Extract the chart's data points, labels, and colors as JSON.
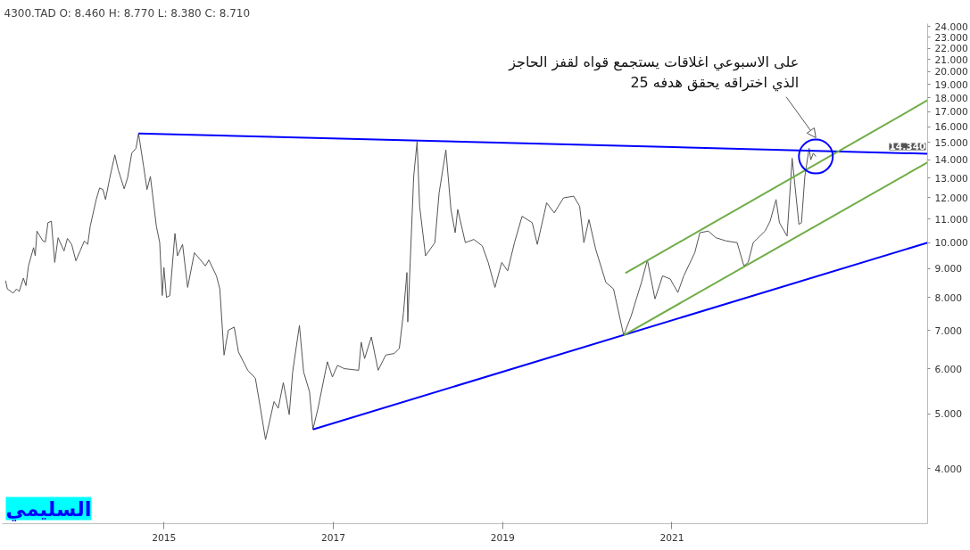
{
  "chart_data": {
    "type": "line",
    "title": "4300.TAD   O: 8.460  H: 8.770  L: 8.380  C: 8.710",
    "log": "y",
    "grid": false,
    "line_style": "solid",
    "marker": "none",
    "xlim": [
      2013.09,
      2024.02
    ],
    "xticks": [
      2015,
      2017,
      2019,
      2021
    ],
    "ylim": [
      3.2,
      24.3
    ],
    "yticks": [
      {
        "value": 4,
        "label": "4.000"
      },
      {
        "value": 5,
        "label": "5.000"
      },
      {
        "value": 6,
        "label": "6.000"
      },
      {
        "value": 7,
        "label": "7.000"
      },
      {
        "value": 8,
        "label": "8.000"
      },
      {
        "value": 9,
        "label": "9.000"
      },
      {
        "value": 10,
        "label": "10.000"
      },
      {
        "value": 11,
        "label": "11.000"
      },
      {
        "value": 12,
        "label": "12.000"
      },
      {
        "value": 13,
        "label": "13.000"
      },
      {
        "value": 14,
        "label": "14.000"
      },
      {
        "value": 15,
        "label": "15.000"
      },
      {
        "value": 16,
        "label": "16.000"
      },
      {
        "value": 17,
        "label": "17.000"
      },
      {
        "value": 18,
        "label": "18.000"
      },
      {
        "value": 19,
        "label": "19.000"
      },
      {
        "value": 20,
        "label": "20.000"
      },
      {
        "value": 21,
        "label": "21.000"
      },
      {
        "value": 22,
        "label": "22.000"
      },
      {
        "value": 23,
        "label": "23.000"
      },
      {
        "value": 24,
        "label": "24.000"
      }
    ],
    "series": [
      {
        "color": "#555555",
        "x": [
          2013.13,
          2013.15,
          2013.22,
          2013.26,
          2013.29,
          2013.34,
          2013.37,
          2013.4,
          2013.46,
          2013.48,
          2013.5,
          2013.57,
          2013.6,
          2013.63,
          2013.67,
          2013.71,
          2013.75,
          2013.82,
          2013.86,
          2013.91,
          2013.96,
          2014.01,
          2014.06,
          2014.1,
          2014.13,
          2014.2,
          2014.24,
          2014.28,
          2014.31,
          2014.36,
          2014.42,
          2014.46,
          2014.53,
          2014.57,
          2014.62,
          2014.67,
          2014.7,
          2014.76,
          2014.8,
          2014.84,
          2014.91,
          2014.95,
          2014.98,
          2015.0,
          2015.03,
          2015.07,
          2015.13,
          2015.16,
          2015.22,
          2015.28,
          2015.36,
          2015.49,
          2015.53,
          2015.62,
          2015.66,
          2015.71,
          2015.76,
          2015.83,
          2015.88,
          2015.99,
          2016.08,
          2016.14,
          2016.2,
          2016.3,
          2016.35,
          2016.41,
          2016.48,
          2016.52,
          2016.6,
          2016.65,
          2016.72,
          2016.76,
          2016.82,
          2016.93,
          2016.99,
          2017.05,
          2017.13,
          2017.3,
          2017.33,
          2017.37,
          2017.45,
          2017.53,
          2017.62,
          2017.72,
          2017.78,
          2017.83,
          2017.87,
          2017.88,
          2017.95,
          2017.99,
          2018.02,
          2018.09,
          2018.2,
          2018.25,
          2018.33,
          2018.39,
          2018.44,
          2018.47,
          2018.56,
          2018.66,
          2018.76,
          2018.83,
          2018.91,
          2018.99,
          2019.06,
          2019.14,
          2019.23,
          2019.35,
          2019.41,
          2019.52,
          2019.61,
          2019.72,
          2019.84,
          2019.91,
          2019.96,
          2020.02,
          2020.1,
          2020.22,
          2020.31,
          2020.43,
          2020.52,
          2020.58,
          2020.64,
          2020.71,
          2020.8,
          2020.89,
          2020.98,
          2021.07,
          2021.14,
          2021.27,
          2021.33,
          2021.43,
          2021.52,
          2021.64,
          2021.77,
          2021.85,
          2021.9,
          2021.96,
          2022.1,
          2022.16,
          2022.23,
          2022.27,
          2022.36,
          2022.42,
          2022.5,
          2022.53,
          2022.57,
          2022.62,
          2022.64,
          2022.67,
          2022.7
        ],
        "values": [
          8.57,
          8.29,
          8.15,
          8.29,
          8.2,
          8.66,
          8.4,
          9.1,
          9.8,
          9.48,
          10.48,
          10.07,
          10.03,
          10.84,
          10.91,
          9.23,
          10.2,
          9.67,
          10.17,
          9.93,
          9.29,
          9.67,
          10.07,
          9.93,
          10.7,
          11.91,
          12.48,
          12.4,
          11.91,
          12.99,
          14.27,
          13.44,
          12.44,
          12.99,
          14.37,
          14.66,
          15.57,
          13.62,
          12.4,
          13.08,
          10.7,
          10.0,
          8.07,
          9.04,
          8.01,
          8.07,
          10.38,
          9.48,
          9.93,
          8.34,
          9.6,
          9.1,
          9.32,
          8.74,
          8.29,
          6.34,
          7.01,
          7.1,
          6.42,
          5.96,
          5.77,
          5.11,
          4.5,
          5.25,
          5.11,
          5.67,
          4.98,
          5.92,
          7.15,
          5.92,
          5.46,
          4.69,
          5.11,
          6.17,
          5.8,
          6.08,
          6.0,
          5.96,
          6.68,
          6.25,
          6.82,
          5.96,
          6.34,
          6.38,
          6.51,
          7.54,
          8.86,
          7.25,
          13.08,
          15.06,
          11.59,
          9.48,
          10.0,
          12.23,
          14.56,
          11.44,
          10.41,
          11.44,
          10.0,
          10.13,
          9.87,
          9.23,
          8.34,
          9.23,
          8.92,
          10.0,
          11.13,
          10.84,
          9.93,
          11.75,
          11.28,
          11.99,
          12.07,
          11.59,
          10.0,
          10.98,
          9.73,
          8.51,
          8.29,
          6.87,
          7.44,
          7.96,
          8.51,
          9.32,
          7.96,
          8.74,
          8.63,
          8.17,
          8.74,
          9.6,
          10.41,
          10.48,
          10.2,
          10.07,
          10.0,
          9.1,
          9.23,
          10.0,
          10.48,
          10.91,
          11.91,
          10.84,
          10.27,
          14.08,
          10.77,
          10.84,
          13.08,
          14.66,
          13.99,
          14.37,
          14.18
        ]
      },
      {
        "color": "#0000ff",
        "x": [
          2014.7,
          2024.02
        ],
        "values": [
          15.57,
          14.34
        ]
      },
      {
        "color": "#0000ff",
        "x": [
          2016.76,
          2024.02
        ],
        "values": [
          4.69,
          10.0
        ]
      },
      {
        "color": "#70ad47",
        "x": [
          2020.45,
          2024.02
        ],
        "values": [
          8.84,
          17.81
        ]
      },
      {
        "color": "#70ad47",
        "x": [
          2020.43,
          2024.02
        ],
        "values": [
          6.87,
          13.85
        ]
      }
    ],
    "annotations": [
      {
        "text": "على الاسبوعي اغلاقات يستجمع قواه لقفز الحاجز\nالذي اختراقه يحقق هدفه 25",
        "x": 2022.7,
        "y": 15.3
      },
      {
        "text": "14.340",
        "x": 2024.02,
        "y": 14.34
      },
      "السليمي"
    ]
  }
}
